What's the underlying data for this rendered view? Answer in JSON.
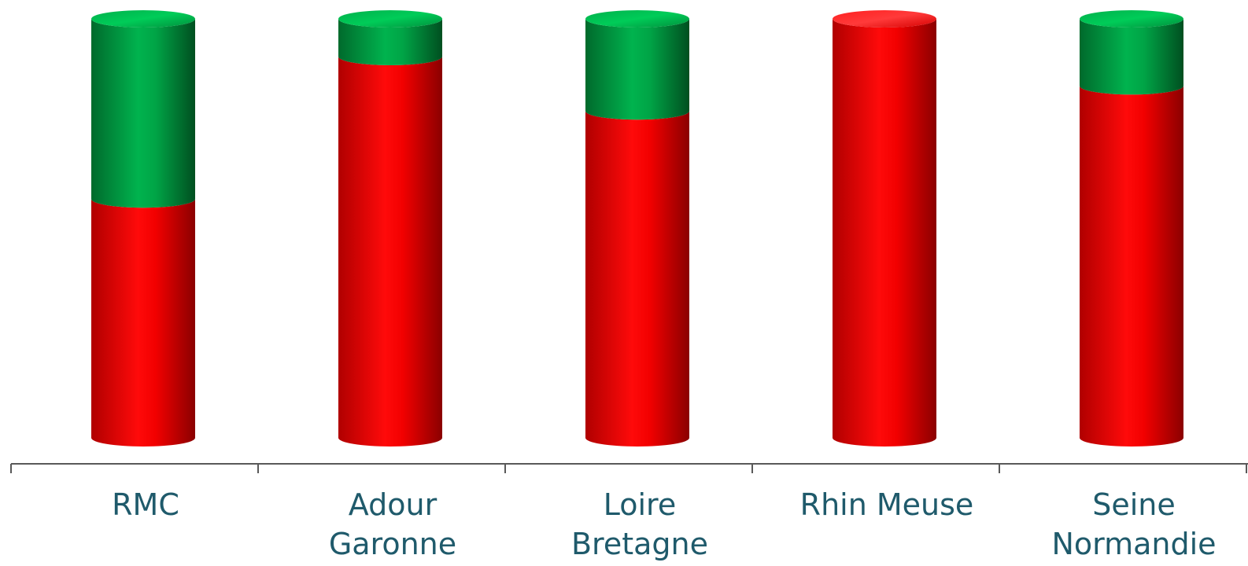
{
  "chart_data": {
    "type": "bar",
    "stacked": true,
    "orientation": "vertical",
    "style": "3d-cylinder",
    "title": "",
    "xlabel": "",
    "ylabel": "",
    "categories": [
      [
        "RMC"
      ],
      [
        "Adour",
        "Garonne"
      ],
      [
        "Loire",
        "Bretagne"
      ],
      [
        "Rhin Meuse"
      ],
      [
        "Seine",
        "Normandie"
      ]
    ],
    "series": [
      {
        "values": [
          57,
          91,
          78,
          100,
          84
        ],
        "color": "#e8000b"
      },
      {
        "values": [
          43,
          9,
          22,
          0,
          16
        ],
        "color": "#00a040"
      }
    ],
    "ylim": [
      0,
      100
    ],
    "grid": false,
    "legend": "none",
    "axis_color": "#595959",
    "label_color": "#1f5a6b"
  }
}
